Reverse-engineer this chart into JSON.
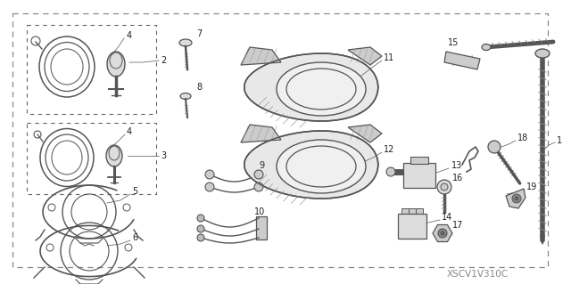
{
  "bg_color": "#ffffff",
  "border_color": "#888888",
  "line_color": "#555555",
  "watermark": "XSCV1V310C",
  "font_size": 7.0,
  "watermark_fs": 7.5
}
